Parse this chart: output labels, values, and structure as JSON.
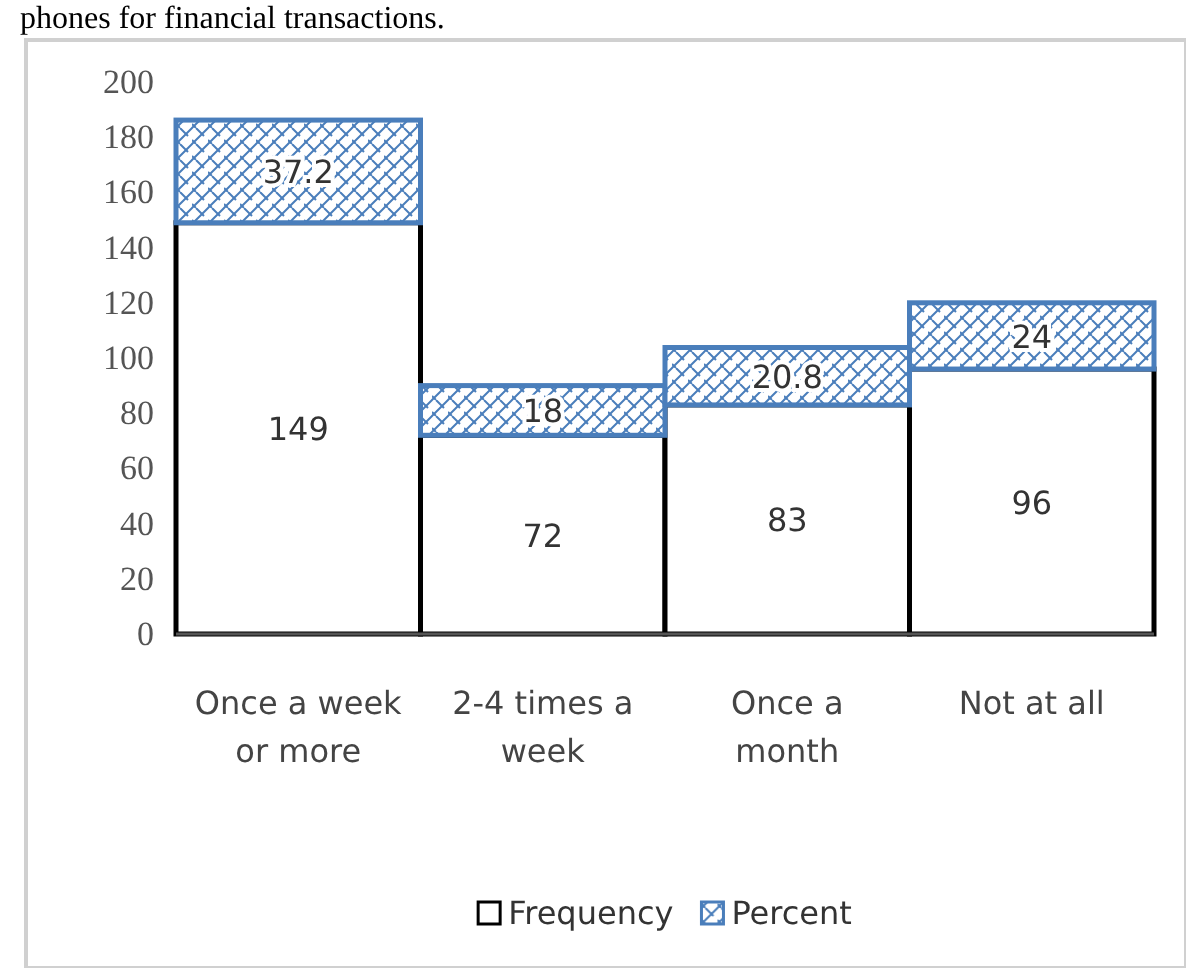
{
  "chart_data": {
    "type": "bar",
    "stacked": true,
    "categories": [
      "Once a week or more",
      "2-4 times a week",
      "Once a month",
      "Not at all"
    ],
    "series": [
      {
        "name": "Frequency",
        "color": "#ffffff",
        "values": [
          149,
          72,
          83,
          96
        ]
      },
      {
        "name": "Percent",
        "color": "#4a7ebb",
        "values": [
          37.2,
          18,
          20.8,
          24
        ]
      }
    ],
    "ylim": [
      0,
      200
    ],
    "yticks": [
      0,
      20,
      40,
      60,
      80,
      100,
      120,
      140,
      160,
      180,
      200
    ],
    "grid": false,
    "legend": "bottom",
    "data_labels": true,
    "annotations": [
      "phones for financial transactions."
    ]
  }
}
